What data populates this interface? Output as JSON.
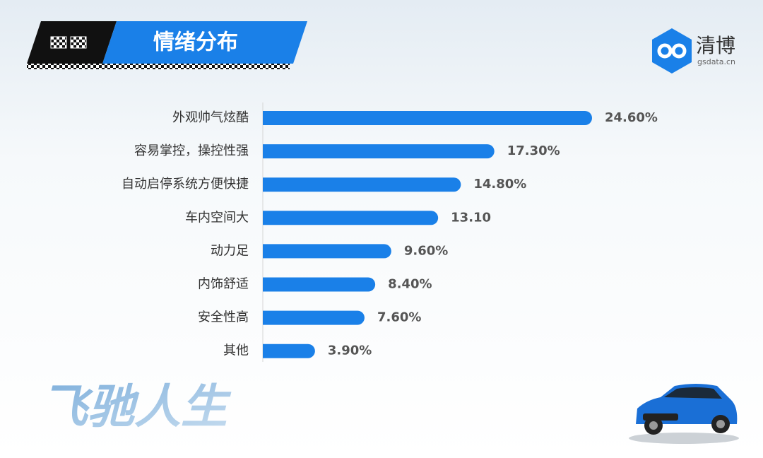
{
  "chart_data": {
    "type": "hbar",
    "title": "情绪分布",
    "categories": [
      "外观帅气炫酷",
      "容易掌控，操控性强",
      "自动启停系统方便快捷",
      "车内空间大",
      "动力足",
      "内饰舒适",
      "安全性高",
      "其他"
    ],
    "values": [
      24.6,
      17.3,
      14.8,
      13.1,
      9.6,
      8.4,
      7.6,
      3.9
    ],
    "value_labels": [
      "24.60%",
      "17.30%",
      "14.80%",
      "13.10",
      "9.60%",
      "8.40%",
      "7.60%",
      "3.90%"
    ],
    "color": "#1a80e8"
  },
  "logo": {
    "name": "清博",
    "site": "gsdata.cn"
  },
  "slogan": "飞驰人生"
}
